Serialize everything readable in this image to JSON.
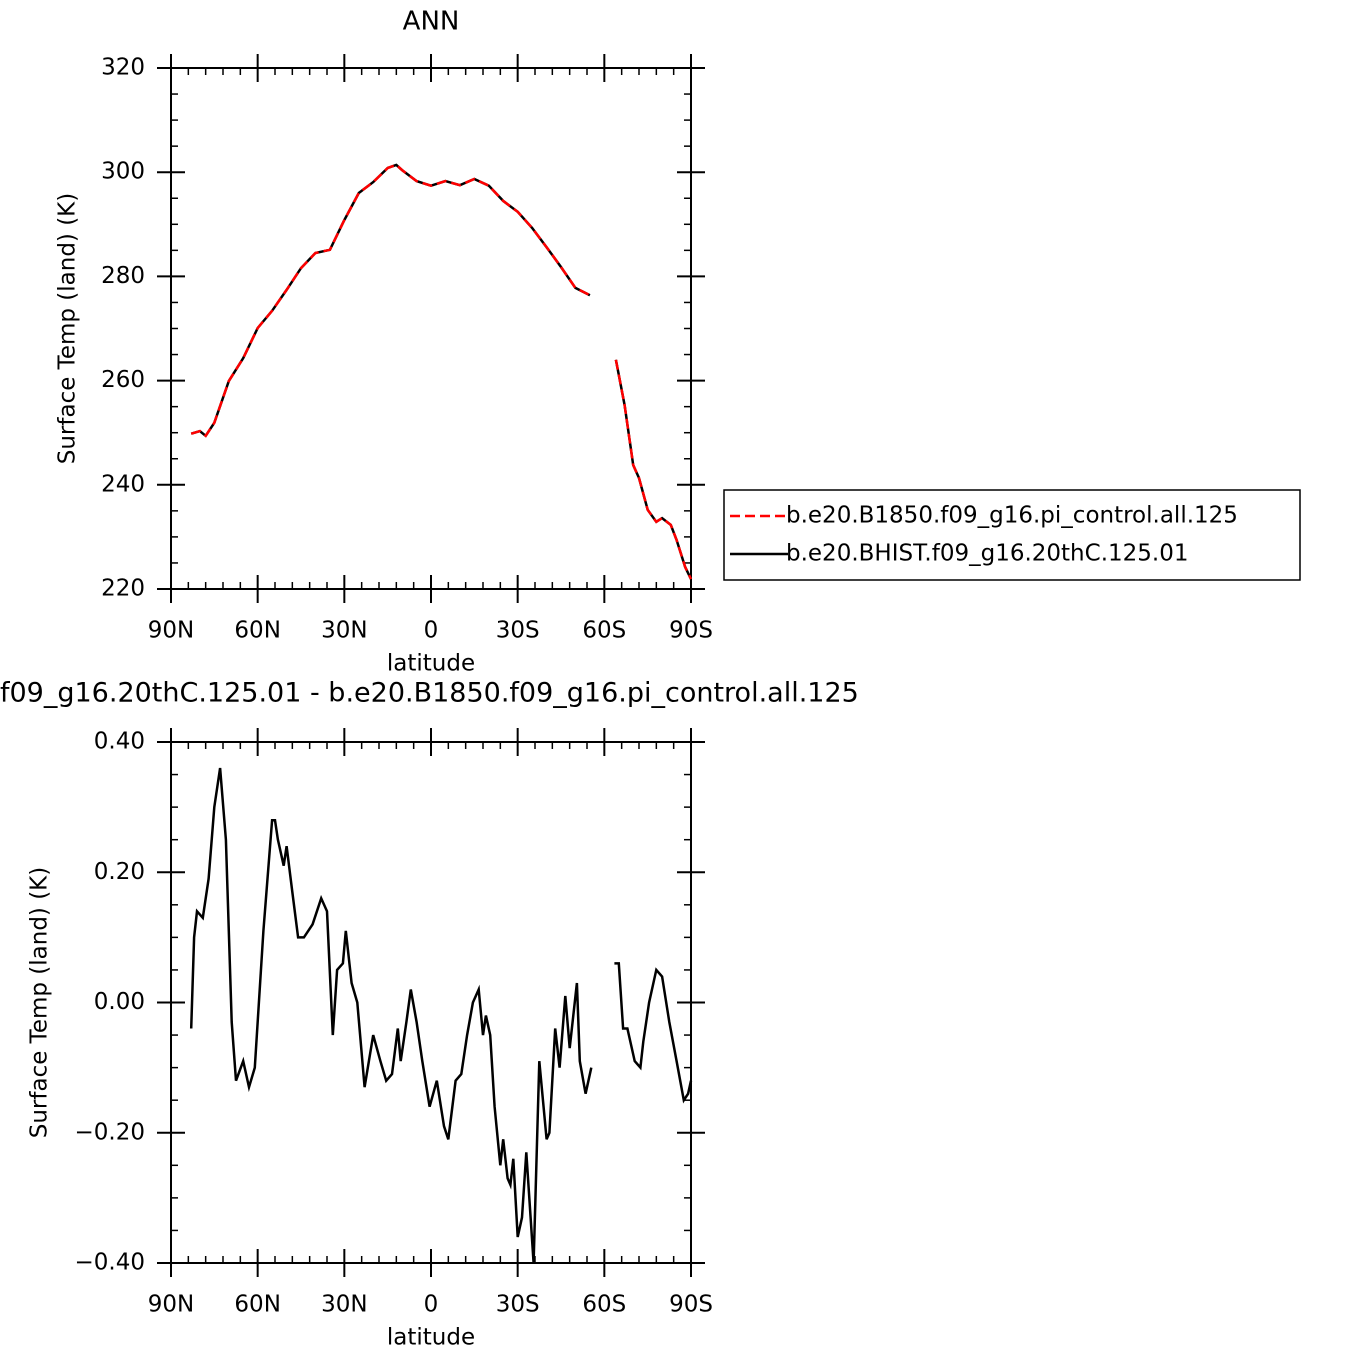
{
  "chart_data": [
    {
      "type": "line",
      "title": "ANN",
      "xlabel": "latitude",
      "ylabel": "Surface Temp (land) (K)",
      "xlim": [
        90,
        -90
      ],
      "xticks": [
        {
          "value": 90,
          "label": "90N"
        },
        {
          "value": 60,
          "label": "60N"
        },
        {
          "value": 30,
          "label": "30N"
        },
        0,
        {
          "value": -30,
          "label": "30S"
        },
        {
          "value": -60,
          "label": "60S"
        },
        {
          "value": -90,
          "label": "90S"
        }
      ],
      "ylim": [
        220,
        320
      ],
      "yticks": [
        220,
        240,
        260,
        280,
        300,
        320
      ],
      "legend": "outside-right",
      "x": [
        83,
        80,
        78,
        75,
        70,
        65,
        60,
        55,
        50,
        45,
        40,
        35,
        30,
        25,
        20,
        15,
        12,
        10,
        5,
        0,
        -5,
        -10,
        -15,
        -20,
        -25,
        -30,
        -35,
        -40,
        -45,
        -50,
        -55,
        -60,
        -64,
        -67,
        -70,
        -72,
        -75,
        -78,
        -80,
        -83,
        -85,
        -88,
        -90
      ],
      "series": [
        {
          "name": "b.e20.B1850.f09_g16.pi_control.all.125",
          "color": "#ff0000",
          "dash": "dashed",
          "values": [
            249.8,
            250.3,
            249.4,
            251.9,
            259.9,
            264.3,
            270.1,
            273.4,
            277.4,
            281.6,
            284.5,
            285.1,
            290.8,
            296.0,
            298.1,
            300.8,
            301.4,
            300.4,
            298.3,
            297.4,
            298.3,
            297.5,
            298.7,
            297.4,
            294.5,
            292.4,
            289.3,
            285.6,
            281.8,
            277.8,
            276.4,
            null,
            264.0,
            255.3,
            243.8,
            241.3,
            235.2,
            232.9,
            233.6,
            232.3,
            229.4,
            224.2,
            221.9
          ]
        },
        {
          "name": "b.e20.BHIST.f09_g16.20thC.125.01",
          "color": "#000000",
          "dash": "solid",
          "values": [
            249.8,
            250.3,
            249.4,
            251.9,
            259.9,
            264.3,
            270.1,
            273.4,
            277.4,
            281.6,
            284.5,
            285.1,
            290.8,
            296.0,
            298.1,
            300.8,
            301.4,
            300.4,
            298.3,
            297.4,
            298.3,
            297.5,
            298.7,
            297.4,
            294.5,
            292.4,
            289.3,
            285.6,
            281.8,
            277.8,
            276.4,
            null,
            264.0,
            255.3,
            243.8,
            241.3,
            235.2,
            232.9,
            233.6,
            232.3,
            229.4,
            224.2,
            221.9
          ]
        }
      ]
    },
    {
      "type": "line",
      "title": "f09_g16.20thC.125.01 - b.e20.B1850.f09_g16.pi_control.all.125",
      "xlabel": "latitude",
      "ylabel": "Surface Temp (land) (K)",
      "xlim": [
        90,
        -90
      ],
      "xticks": [
        {
          "value": 90,
          "label": "90N"
        },
        {
          "value": 60,
          "label": "60N"
        },
        {
          "value": 30,
          "label": "30N"
        },
        0,
        {
          "value": -30,
          "label": "30S"
        },
        {
          "value": -60,
          "label": "60S"
        },
        {
          "value": -90,
          "label": "90S"
        }
      ],
      "ylim": [
        -0.4,
        0.4
      ],
      "yticks": [
        {
          "value": -0.4,
          "label": "−0.40"
        },
        {
          "value": -0.2,
          "label": "−0.20"
        },
        {
          "value": 0,
          "label": "0.00"
        },
        {
          "value": 0.2,
          "label": "0.20"
        },
        {
          "value": 0.4,
          "label": "0.40"
        }
      ],
      "color": "#000000",
      "x": [
        83,
        82,
        81,
        79,
        77,
        75,
        73,
        71,
        69,
        67.5,
        65,
        63,
        61,
        58,
        55,
        54,
        53,
        51,
        50,
        48,
        46,
        44,
        41,
        38,
        36,
        34,
        32.5,
        30.5,
        29.5,
        27.5,
        25.5,
        23,
        21.5,
        20,
        17.5,
        15.5,
        13.5,
        11.5,
        10.5,
        8.5,
        7,
        5,
        3,
        0.5,
        -2,
        -4.5,
        -6,
        -8.5,
        -10.5,
        -12.5,
        -14.5,
        -16.5,
        -18,
        -19,
        -20.5,
        -22,
        -24,
        -25,
        -26.5,
        -27.5,
        -28.5,
        -30,
        -31.5,
        -33,
        -35.5,
        -37.5,
        -40,
        -41,
        -43,
        -44.5,
        -46.5,
        -48,
        -50.5,
        -51.5,
        -53.5,
        -55.5,
        -60,
        -63.5,
        -65,
        -66.5,
        -68,
        -70.5,
        -72.5,
        -73.5,
        -75.5,
        -78,
        -80,
        -82.5,
        -85,
        -87.5,
        -89,
        -90
      ],
      "values": [
        -0.04,
        0.1,
        0.14,
        0.13,
        0.19,
        0.3,
        0.36,
        0.25,
        -0.03,
        -0.12,
        -0.09,
        -0.13,
        -0.1,
        0.11,
        0.28,
        0.28,
        0.25,
        0.21,
        0.24,
        0.17,
        0.1,
        0.1,
        0.12,
        0.16,
        0.14,
        -0.05,
        0.05,
        0.06,
        0.11,
        0.03,
        0.0,
        -0.13,
        -0.09,
        -0.05,
        -0.09,
        -0.12,
        -0.11,
        -0.04,
        -0.09,
        -0.03,
        0.02,
        -0.03,
        -0.09,
        -0.16,
        -0.12,
        -0.19,
        -0.21,
        -0.12,
        -0.11,
        -0.05,
        0.0,
        0.02,
        -0.05,
        -0.02,
        -0.05,
        -0.16,
        -0.25,
        -0.21,
        -0.27,
        -0.28,
        -0.24,
        -0.36,
        -0.33,
        -0.23,
        -0.4,
        -0.09,
        -0.21,
        -0.2,
        -0.04,
        -0.1,
        0.01,
        -0.07,
        0.03,
        -0.09,
        -0.14,
        -0.1,
        null,
        0.06,
        0.06,
        -0.04,
        -0.04,
        -0.09,
        -0.1,
        -0.06,
        0.0,
        0.05,
        0.04,
        -0.03,
        -0.09,
        -0.15,
        -0.14,
        -0.12
      ]
    }
  ]
}
